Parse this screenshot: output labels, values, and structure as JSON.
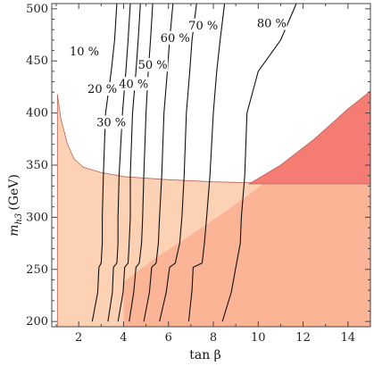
{
  "chart_data": {
    "type": "line",
    "title": "",
    "xlabel": "tan β",
    "ylabel_main": "m",
    "ylabel_sub": "h3",
    "ylabel_unit": "(GeV)",
    "xlim": [
      0.8,
      15
    ],
    "ylim": [
      195,
      505
    ],
    "xticks": [
      2,
      4,
      6,
      8,
      10,
      12,
      14
    ],
    "yticks": [
      200,
      250,
      300,
      350,
      400,
      450,
      500
    ],
    "grid": false,
    "colors": {
      "light_region": "#fdd1b4",
      "medium_region": "#fbb596",
      "dark_region": "#f47c73",
      "region_edge": "#b5655a",
      "contour": "#111111"
    },
    "regions": [
      {
        "id": "upper-excluded",
        "points": [
          [
            1.05,
            418
          ],
          [
            1.2,
            395
          ],
          [
            1.5,
            370
          ],
          [
            1.8,
            356
          ],
          [
            2.2,
            348
          ],
          [
            3,
            343
          ],
          [
            4,
            339
          ],
          [
            6,
            336
          ],
          [
            8,
            334
          ],
          [
            10,
            333
          ],
          [
            12,
            332.5
          ],
          [
            15,
            332
          ],
          [
            15,
            195
          ],
          [
            1.05,
            195
          ]
        ]
      },
      {
        "id": "lower-right-overlap",
        "points": [
          [
            4,
            238
          ],
          [
            5.5,
            262
          ],
          [
            7,
            283
          ],
          [
            8.5,
            305
          ],
          [
            9.6,
            322
          ],
          [
            10.2,
            332
          ],
          [
            15,
            332
          ],
          [
            15,
            195
          ],
          [
            4,
            195
          ]
        ]
      },
      {
        "id": "dark-wedge",
        "points": [
          [
            9.6,
            332
          ],
          [
            11,
            350
          ],
          [
            12.5,
            375
          ],
          [
            14,
            404
          ],
          [
            15,
            421
          ],
          [
            15,
            332
          ]
        ]
      }
    ],
    "contours": [
      {
        "label": "10 %",
        "points": [
          [
            2.6,
            200
          ],
          [
            2.85,
            228
          ],
          [
            2.9,
            252
          ],
          [
            3.0,
            256
          ],
          [
            3.05,
            275
          ],
          [
            3.05,
            300
          ],
          [
            3.1,
            340
          ],
          [
            3.2,
            400
          ],
          [
            3.45,
            440
          ],
          [
            3.6,
            470
          ],
          [
            3.7,
            505
          ]
        ]
      },
      {
        "label": "20 %",
        "points": [
          [
            3.3,
            200
          ],
          [
            3.5,
            228
          ],
          [
            3.55,
            252
          ],
          [
            3.7,
            256
          ],
          [
            3.75,
            275
          ],
          [
            3.75,
            300
          ],
          [
            3.8,
            340
          ],
          [
            3.95,
            400
          ],
          [
            4.1,
            440
          ],
          [
            4.2,
            470
          ],
          [
            4.3,
            505
          ]
        ]
      },
      {
        "label": "30 %",
        "points": [
          [
            3.75,
            200
          ],
          [
            3.98,
            228
          ],
          [
            4.05,
            252
          ],
          [
            4.2,
            256
          ],
          [
            4.25,
            275
          ],
          [
            4.3,
            300
          ],
          [
            4.3,
            340
          ],
          [
            4.4,
            400
          ],
          [
            4.55,
            440
          ],
          [
            4.65,
            470
          ],
          [
            4.75,
            505
          ]
        ]
      },
      {
        "label": "40 %",
        "points": [
          [
            4.25,
            200
          ],
          [
            4.45,
            228
          ],
          [
            4.55,
            252
          ],
          [
            4.7,
            256
          ],
          [
            4.8,
            275
          ],
          [
            4.85,
            300
          ],
          [
            4.9,
            340
          ],
          [
            5.0,
            400
          ],
          [
            5.1,
            440
          ],
          [
            5.2,
            470
          ],
          [
            5.3,
            505
          ]
        ]
      },
      {
        "label": "50 %",
        "points": [
          [
            4.9,
            200
          ],
          [
            5.15,
            228
          ],
          [
            5.25,
            252
          ],
          [
            5.45,
            256
          ],
          [
            5.55,
            275
          ],
          [
            5.6,
            300
          ],
          [
            5.7,
            340
          ],
          [
            5.8,
            400
          ],
          [
            5.95,
            440
          ],
          [
            6.05,
            470
          ],
          [
            6.2,
            505
          ]
        ]
      },
      {
        "label": "60 %",
        "points": [
          [
            5.6,
            200
          ],
          [
            5.9,
            228
          ],
          [
            6.05,
            252
          ],
          [
            6.3,
            256
          ],
          [
            6.5,
            275
          ],
          [
            6.6,
            300
          ],
          [
            6.7,
            340
          ],
          [
            6.8,
            400
          ],
          [
            6.95,
            440
          ],
          [
            7.05,
            470
          ],
          [
            7.25,
            505
          ]
        ]
      },
      {
        "label": "70 %",
        "points": [
          [
            6.9,
            200
          ],
          [
            7.05,
            230
          ],
          [
            7.1,
            252
          ],
          [
            7.5,
            256
          ],
          [
            7.6,
            275
          ],
          [
            7.7,
            300
          ],
          [
            7.85,
            340
          ],
          [
            8.0,
            400
          ],
          [
            8.15,
            440
          ],
          [
            8.3,
            470
          ],
          [
            8.5,
            505
          ]
        ]
      },
      {
        "label": "80 %",
        "points": [
          [
            8.4,
            200
          ],
          [
            8.8,
            228
          ],
          [
            9.0,
            252
          ],
          [
            9.2,
            275
          ],
          [
            9.25,
            300
          ],
          [
            9.4,
            340
          ],
          [
            9.5,
            400
          ],
          [
            10.0,
            440
          ],
          [
            11.0,
            470
          ],
          [
            11.7,
            505
          ]
        ]
      }
    ],
    "contour_labels": [
      {
        "text": "10 %",
        "x": 2.25,
        "y": 457
      },
      {
        "text": "20 %",
        "x": 3.05,
        "y": 421
      },
      {
        "text": "30 %",
        "x": 3.45,
        "y": 389
      },
      {
        "text": "40 %",
        "x": 4.45,
        "y": 426
      },
      {
        "text": "50 %",
        "x": 5.3,
        "y": 444
      },
      {
        "text": "60 %",
        "x": 6.3,
        "y": 470
      },
      {
        "text": "70 %",
        "x": 7.55,
        "y": 482
      },
      {
        "text": "80 %",
        "x": 10.6,
        "y": 484
      }
    ]
  }
}
